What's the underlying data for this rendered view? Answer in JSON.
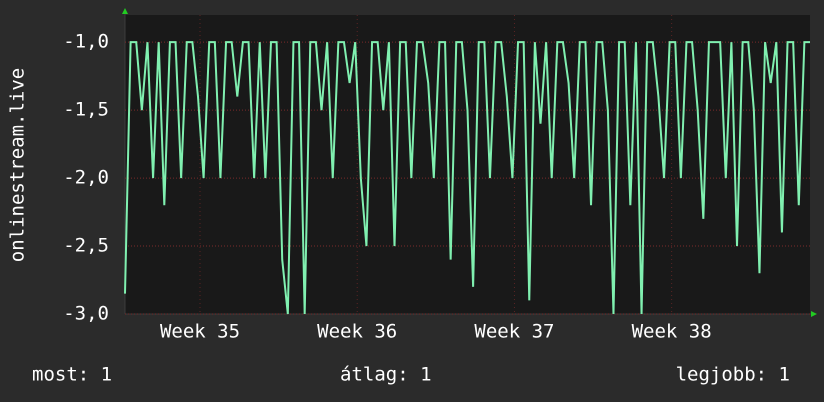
{
  "chart_data": {
    "type": "line",
    "ylabel": "onlinestream.live",
    "xlim": [
      0,
      30.5
    ],
    "xticks": [
      {
        "value": 3.34,
        "label": "Week 35"
      },
      {
        "value": 10.34,
        "label": "Week 36"
      },
      {
        "value": 17.34,
        "label": "Week 37"
      },
      {
        "value": 24.34,
        "label": "Week 38"
      }
    ],
    "ylim": [
      -3.0,
      -0.8
    ],
    "yticks": [
      {
        "value": -3.0,
        "label": "-3,0"
      },
      {
        "value": -2.5,
        "label": "-2,5"
      },
      {
        "value": -2.0,
        "label": "-2,0"
      },
      {
        "value": -1.5,
        "label": "-1,5"
      },
      {
        "value": -1.0,
        "label": "-1,0"
      }
    ],
    "grid": true,
    "x": [
      0,
      0.25,
      0.5,
      0.75,
      1,
      1.25,
      1.5,
      1.75,
      2,
      2.25,
      2.5,
      2.75,
      3,
      3.25,
      3.5,
      3.75,
      4,
      4.25,
      4.5,
      4.75,
      5,
      5.25,
      5.5,
      5.75,
      6,
      6.25,
      6.5,
      6.75,
      7,
      7.25,
      7.5,
      7.75,
      8,
      8.25,
      8.5,
      8.75,
      9,
      9.25,
      9.5,
      9.75,
      10,
      10.25,
      10.5,
      10.75,
      11,
      11.25,
      11.5,
      11.75,
      12,
      12.25,
      12.5,
      12.75,
      13,
      13.25,
      13.5,
      13.75,
      14,
      14.25,
      14.5,
      14.75,
      15,
      15.25,
      15.5,
      15.75,
      16,
      16.25,
      16.5,
      16.75,
      17,
      17.25,
      17.5,
      17.75,
      18,
      18.25,
      18.5,
      18.75,
      19,
      19.25,
      19.5,
      19.75,
      20,
      20.25,
      20.5,
      20.75,
      21,
      21.25,
      21.5,
      21.75,
      22,
      22.25,
      22.5,
      22.75,
      23,
      23.25,
      23.5,
      23.75,
      24,
      24.25,
      24.5,
      24.75,
      25,
      25.25,
      25.5,
      25.75,
      26,
      26.25,
      26.5,
      26.75,
      27,
      27.25,
      27.5,
      27.75,
      28,
      28.25,
      28.5,
      28.75,
      29,
      29.25,
      29.5,
      29.75,
      30,
      30.25,
      30.5
    ],
    "series": [
      {
        "color": "#80f0b0",
        "values": [
          -2.85,
          -1,
          -1,
          -1.5,
          -1,
          -2,
          -1,
          -2.2,
          -1,
          -1,
          -2,
          -1,
          -1,
          -1.4,
          -2,
          -1,
          -1,
          -2,
          -1,
          -1,
          -1.4,
          -1,
          -1,
          -2,
          -1,
          -2,
          -1,
          -1,
          -2.6,
          -3,
          -1,
          -1,
          -3,
          -1,
          -1,
          -1.5,
          -1,
          -2,
          -1,
          -1,
          -1.3,
          -1,
          -2,
          -2.5,
          -1,
          -1,
          -1.5,
          -1,
          -2.5,
          -1,
          -1,
          -2,
          -1,
          -1,
          -1.3,
          -2,
          -1,
          -1,
          -2.6,
          -1,
          -1,
          -1.5,
          -2.8,
          -1,
          -1,
          -2,
          -1,
          -1,
          -1.4,
          -2,
          -1,
          -1,
          -2.9,
          -1,
          -1.6,
          -1,
          -2,
          -1,
          -1,
          -1.3,
          -2,
          -1,
          -1,
          -2.2,
          -1,
          -1,
          -1.5,
          -3,
          -1,
          -1,
          -2.2,
          -1,
          -3,
          -1,
          -1,
          -1.4,
          -2,
          -1,
          -1,
          -2,
          -1,
          -1,
          -1.5,
          -2.3,
          -1,
          -1,
          -1,
          -2,
          -1,
          -2.5,
          -1,
          -1,
          -1.5,
          -2.7,
          -1,
          -1.3,
          -1,
          -2.4,
          -1,
          -1,
          -2.2,
          -1,
          -1
        ]
      }
    ],
    "footer": {
      "current": "most: 1",
      "average": "átlag: 1",
      "best": "legjobb: 1"
    }
  }
}
